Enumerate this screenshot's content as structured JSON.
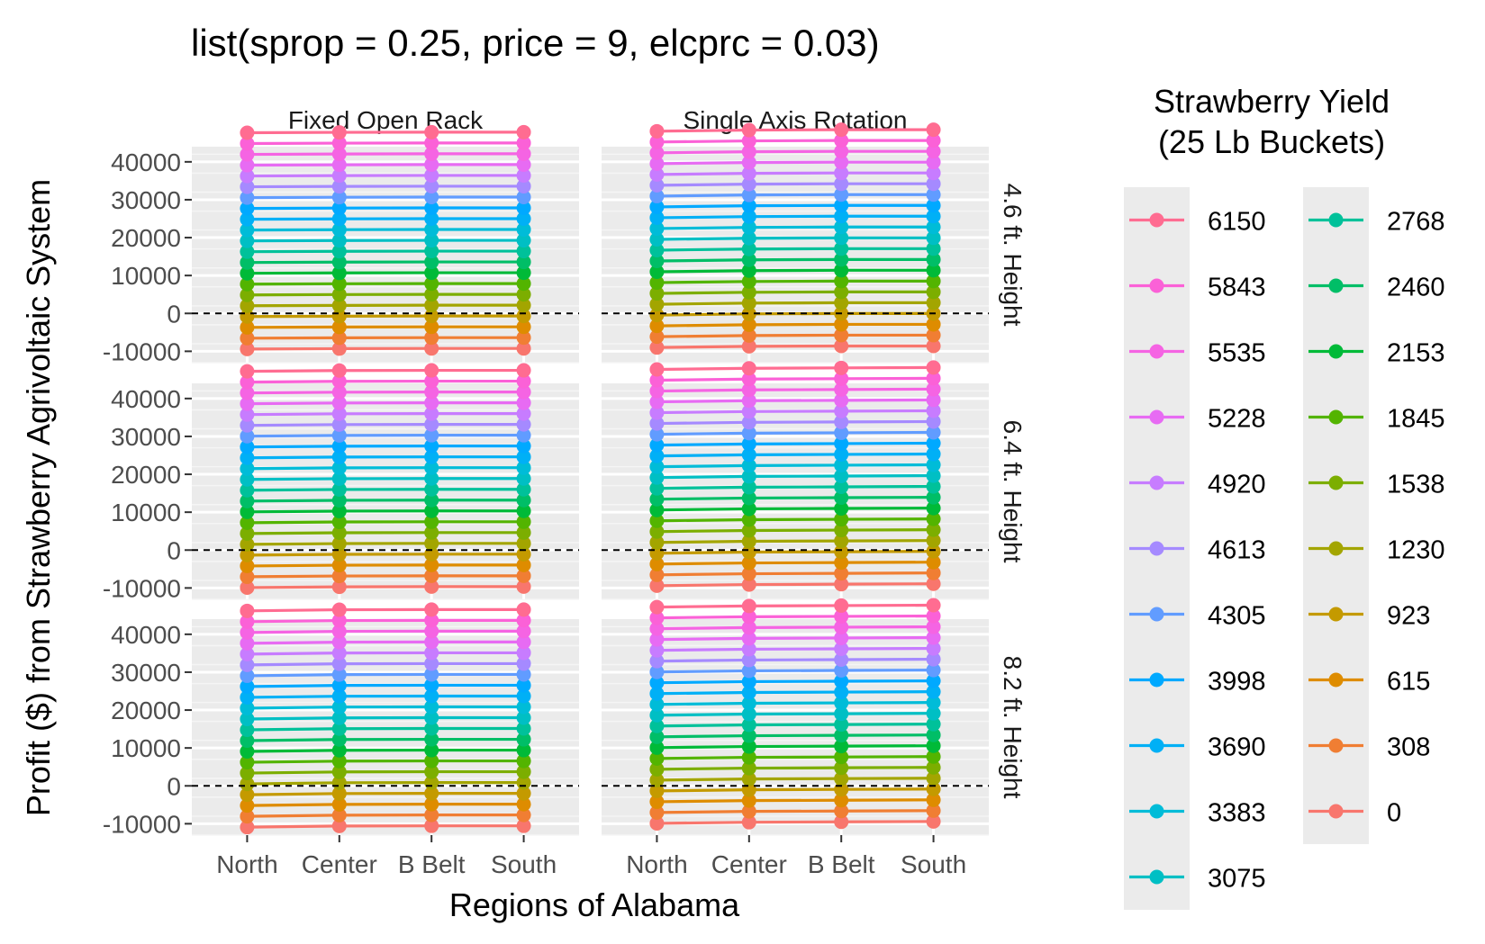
{
  "chart_data": {
    "type": "line",
    "title": "list(sprop = 0.25, price = 9, elcprc = 0.03)",
    "xlabel": "Regions of Alabama",
    "ylabel": "Profit ($) from Strawberry Agrivoltaic System",
    "categories": [
      "North",
      "Center",
      "B Belt",
      "South"
    ],
    "ylim": [
      -13000,
      44000
    ],
    "yticks": [
      40000,
      30000,
      20000,
      10000,
      0,
      -10000
    ],
    "yticklabels": [
      "40000",
      "30000",
      "20000",
      "10000",
      "0",
      "-10000"
    ],
    "reference_line": {
      "y": 0,
      "style": "dashed"
    },
    "facet_columns": [
      "Fixed Open Rack",
      "Single Axis Rotation"
    ],
    "facet_rows": [
      "4.6 ft. Height",
      "6.4 ft. Height",
      "8.2 ft. Height"
    ],
    "legend": {
      "title_lines": [
        "Strawberry Yield",
        "(25 Lb Buckets)"
      ],
      "position": "right",
      "entries": [
        "6150",
        "5843",
        "5535",
        "5228",
        "4920",
        "4613",
        "4305",
        "3998",
        "3690",
        "3383",
        "3075",
        "2768",
        "2460",
        "2153",
        "1845",
        "1538",
        "1230",
        "923",
        "615",
        "308",
        "0"
      ],
      "colors": [
        "#FF6C91",
        "#FB61D7",
        "#F564E3",
        "#E76BF3",
        "#C77CFF",
        "#A58AFF",
        "#619CFF",
        "#00A9FF",
        "#00B0F6",
        "#00BCD8",
        "#00BFC4",
        "#00C19A",
        "#00BE67",
        "#00BA38",
        "#53B400",
        "#7CAE00",
        "#A3A500",
        "#C49A00",
        "#DE8C00",
        "#F07E33",
        "#F8766D"
      ]
    },
    "yields": [
      6150,
      5843,
      5535,
      5228,
      4920,
      4613,
      4305,
      3998,
      3690,
      3383,
      3075,
      2768,
      2460,
      2153,
      1845,
      1538,
      1230,
      923,
      615,
      308,
      0
    ],
    "price": 9,
    "sprop": 0.25,
    "panels": [
      {
        "row": 0,
        "col": 0,
        "zero_yield_profit": [
          -9400,
          -9300,
          -9250,
          -9250
        ]
      },
      {
        "row": 0,
        "col": 1,
        "zero_yield_profit": [
          -9000,
          -8700,
          -8600,
          -8600
        ]
      },
      {
        "row": 1,
        "col": 0,
        "zero_yield_profit": [
          -9900,
          -9700,
          -9650,
          -9650
        ]
      },
      {
        "row": 1,
        "col": 1,
        "zero_yield_profit": [
          -9400,
          -9100,
          -9000,
          -8900
        ]
      },
      {
        "row": 2,
        "col": 0,
        "zero_yield_profit": [
          -10900,
          -10600,
          -10550,
          -10550
        ]
      },
      {
        "row": 2,
        "col": 1,
        "zero_yield_profit": [
          -9900,
          -9600,
          -9500,
          -9400
        ]
      }
    ]
  }
}
